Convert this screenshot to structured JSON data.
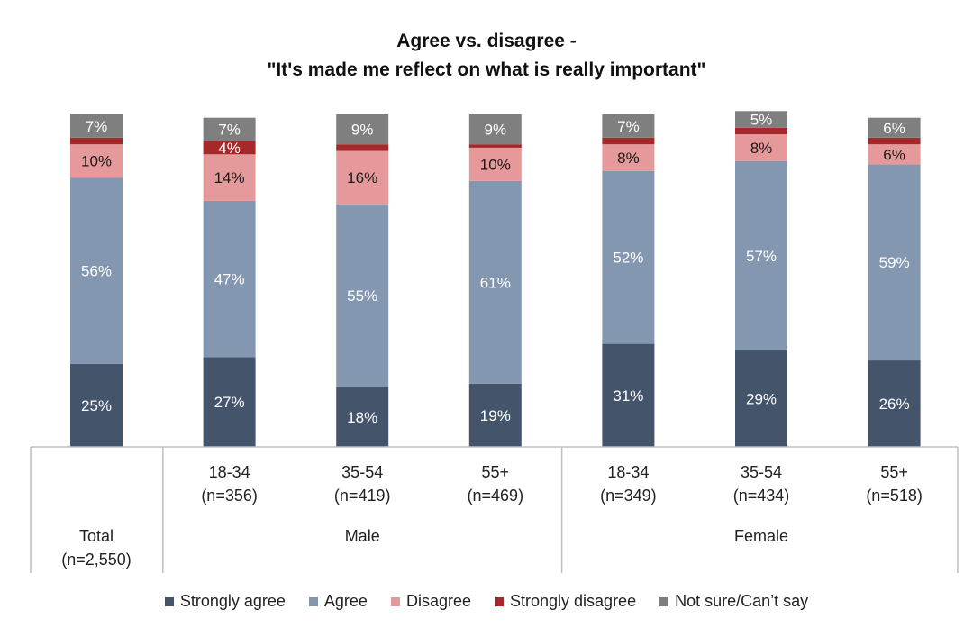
{
  "chart_data": {
    "type": "stacked-bar",
    "title": "Agree vs. disagree -",
    "subtitle": "\"It's made me reflect on what is really important\"",
    "ylim": [
      0,
      100
    ],
    "categories": [
      {
        "label": "Total",
        "n": "(n=2,550)",
        "group": ""
      },
      {
        "label": "18-34",
        "n": "(n=356)",
        "group": "Male"
      },
      {
        "label": "35-54",
        "n": "(n=419)",
        "group": "Male"
      },
      {
        "label": "55+",
        "n": "(n=469)",
        "group": "Male"
      },
      {
        "label": "18-34",
        "n": "(n=349)",
        "group": "Female"
      },
      {
        "label": "35-54",
        "n": "(n=434)",
        "group": "Female"
      },
      {
        "label": "55+",
        "n": "(n=518)",
        "group": "Female"
      }
    ],
    "groups": [
      "Male",
      "Female"
    ],
    "series": [
      {
        "name": "Strongly agree",
        "color": "#44546a",
        "labelColor": "#ffffff",
        "values": [
          25,
          27,
          18,
          19,
          31,
          29,
          26
        ],
        "labels": [
          "25%",
          "27%",
          "18%",
          "19%",
          "31%",
          "29%",
          "26%"
        ]
      },
      {
        "name": "Agree",
        "color": "#8497b0",
        "labelColor": "#ffffff",
        "values": [
          56,
          47,
          55,
          61,
          52,
          57,
          59
        ],
        "labels": [
          "56%",
          "47%",
          "55%",
          "61%",
          "52%",
          "57%",
          "59%"
        ]
      },
      {
        "name": "Disagree",
        "color": "#e6999a",
        "labelColor": "#1a1a1a",
        "values": [
          10,
          14,
          16,
          10,
          8,
          8,
          6
        ],
        "labels": [
          "10%",
          "14%",
          "16%",
          "10%",
          "8%",
          "8%",
          "6%"
        ]
      },
      {
        "name": "Strongly disagree",
        "color": "#a5282a",
        "labelColor": "#ffffff",
        "values": [
          2,
          4,
          2,
          1,
          2,
          2,
          2
        ],
        "labels": [
          "",
          "4%",
          "",
          "",
          "",
          "",
          ""
        ]
      },
      {
        "name": "Not sure/Can’t say",
        "color": "#7f7f7f",
        "labelColor": "#ffffff",
        "values": [
          7,
          7,
          9,
          9,
          7,
          5,
          6
        ],
        "labels": [
          "7%",
          "7%",
          "9%",
          "9%",
          "7%",
          "5%",
          "6%"
        ]
      }
    ]
  }
}
